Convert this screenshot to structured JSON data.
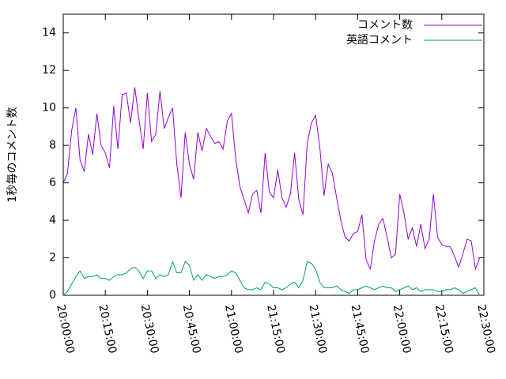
{
  "chart_data": {
    "type": "line",
    "ylabel": "1秒毎のコメント数",
    "legend": "top right",
    "xlim": [
      "20:00:00",
      "22:30:00"
    ],
    "xticks": [
      "20:00:00",
      "20:15:00",
      "20:30:00",
      "20:45:00",
      "21:00:00",
      "21:15:00",
      "21:30:00",
      "21:45:00",
      "22:00:00",
      "22:15:00",
      "22:30:00"
    ],
    "ylim": [
      0,
      15
    ],
    "yticks": [
      0,
      2,
      4,
      6,
      8,
      10,
      12,
      14
    ],
    "x": [
      "20:00:00",
      "20:01:30",
      "20:03:00",
      "20:04:30",
      "20:06:00",
      "20:07:30",
      "20:09:00",
      "20:10:30",
      "20:12:00",
      "20:13:30",
      "20:15:00",
      "20:16:30",
      "20:18:00",
      "20:19:30",
      "20:21:00",
      "20:22:30",
      "20:24:00",
      "20:25:30",
      "20:27:00",
      "20:28:30",
      "20:30:00",
      "20:31:30",
      "20:33:00",
      "20:34:30",
      "20:36:00",
      "20:37:30",
      "20:39:00",
      "20:40:30",
      "20:42:00",
      "20:43:30",
      "20:45:00",
      "20:46:30",
      "20:48:00",
      "20:49:30",
      "20:51:00",
      "20:52:30",
      "20:54:00",
      "20:55:30",
      "20:57:00",
      "20:58:30",
      "21:00:00",
      "21:01:30",
      "21:03:00",
      "21:04:30",
      "21:06:00",
      "21:07:30",
      "21:09:00",
      "21:10:30",
      "21:12:00",
      "21:13:30",
      "21:15:00",
      "21:16:30",
      "21:18:00",
      "21:19:30",
      "21:21:00",
      "21:22:30",
      "21:24:00",
      "21:25:30",
      "21:27:00",
      "21:28:30",
      "21:30:00",
      "21:31:30",
      "21:33:00",
      "21:34:30",
      "21:36:00",
      "21:37:30",
      "21:39:00",
      "21:40:30",
      "21:42:00",
      "21:43:30",
      "21:45:00",
      "21:46:30",
      "21:48:00",
      "21:49:30",
      "21:51:00",
      "21:52:30",
      "21:54:00",
      "21:55:30",
      "21:57:00",
      "21:58:30",
      "22:00:00",
      "22:01:30",
      "22:03:00",
      "22:04:30",
      "22:06:00",
      "22:07:30",
      "22:09:00",
      "22:10:30",
      "22:12:00",
      "22:13:30",
      "22:15:00",
      "22:16:30",
      "22:18:00",
      "22:19:30",
      "22:21:00",
      "22:22:30",
      "22:24:00",
      "22:25:30",
      "22:27:00",
      "22:28:30"
    ],
    "series": [
      {
        "name": "コメント数",
        "color": "#9400d3",
        "values": [
          6.0,
          6.5,
          8.8,
          10.0,
          7.2,
          6.6,
          8.6,
          7.5,
          9.7,
          8.0,
          7.6,
          6.8,
          10.1,
          7.8,
          10.7,
          10.8,
          9.2,
          11.1,
          9.4,
          7.8,
          10.8,
          8.2,
          8.6,
          10.9,
          8.9,
          9.5,
          10.0,
          7.0,
          5.2,
          8.7,
          7.0,
          6.2,
          8.7,
          7.7,
          8.9,
          8.5,
          8.1,
          8.2,
          7.8,
          9.3,
          9.7,
          7.3,
          5.8,
          5.1,
          4.4,
          5.4,
          5.6,
          4.4,
          7.6,
          5.5,
          5.2,
          6.7,
          5.2,
          4.7,
          5.4,
          7.6,
          5.1,
          4.3,
          8.1,
          9.2,
          9.6,
          7.9,
          5.3,
          7.0,
          6.5,
          5.2,
          4.0,
          3.1,
          2.9,
          3.3,
          3.4,
          4.3,
          1.9,
          1.4,
          2.9,
          3.8,
          4.1,
          3.1,
          2.0,
          2.2,
          5.4,
          4.4,
          3.0,
          3.6,
          2.6,
          3.8,
          2.5,
          3.0,
          5.4,
          3.1,
          2.7,
          2.6,
          2.6,
          2.1,
          1.5,
          2.2,
          3.0,
          2.9,
          1.4,
          2.0
        ]
      },
      {
        "name": "英語コメント",
        "color": "#009e73",
        "values": [
          0.0,
          0.2,
          0.6,
          1.0,
          1.3,
          0.9,
          1.0,
          1.0,
          1.1,
          0.9,
          0.9,
          0.8,
          1.0,
          1.1,
          1.1,
          1.2,
          1.4,
          1.5,
          1.3,
          0.9,
          1.3,
          1.3,
          0.9,
          1.1,
          1.0,
          1.1,
          1.8,
          1.2,
          1.2,
          1.8,
          1.6,
          0.8,
          1.1,
          0.8,
          1.1,
          1.0,
          0.9,
          1.0,
          1.0,
          1.1,
          1.3,
          1.2,
          0.8,
          0.4,
          0.3,
          0.3,
          0.4,
          0.3,
          0.7,
          0.6,
          0.4,
          0.4,
          0.3,
          0.4,
          0.6,
          0.7,
          0.4,
          0.8,
          1.8,
          1.7,
          1.4,
          0.7,
          0.4,
          0.4,
          0.4,
          0.5,
          0.3,
          0.2,
          0.1,
          0.3,
          0.3,
          0.4,
          0.5,
          0.4,
          0.3,
          0.4,
          0.5,
          0.4,
          0.4,
          0.2,
          0.3,
          0.4,
          0.5,
          0.3,
          0.4,
          0.2,
          0.3,
          0.3,
          0.3,
          0.2,
          0.2,
          0.3,
          0.3,
          0.4,
          0.3,
          0.1,
          0.2,
          0.3,
          0.4,
          0.0
        ]
      }
    ]
  }
}
